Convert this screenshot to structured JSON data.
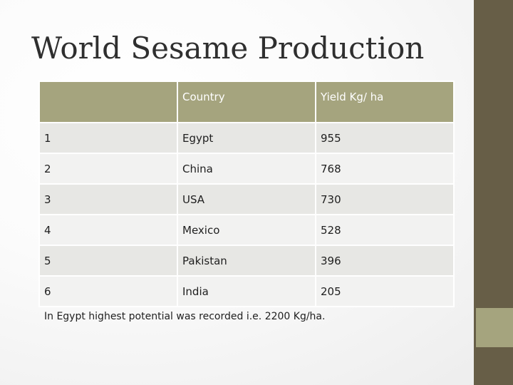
{
  "title": "World Sesame Production",
  "table": {
    "headers": [
      "",
      "Country",
      "Yield Kg/ ha"
    ],
    "rows": [
      [
        "1",
        "Egypt",
        "955"
      ],
      [
        "2",
        "China",
        "768"
      ],
      [
        "3",
        "USA",
        "730"
      ],
      [
        "4",
        "Mexico",
        "528"
      ],
      [
        "5",
        "Pakistan",
        "396"
      ],
      [
        "6",
        "India",
        "205"
      ]
    ]
  },
  "note": "In Egypt highest potential was recorded i.e. 2200 Kg/ha.",
  "colors": {
    "sidebar": "#675e47",
    "accent": "#a5a47e",
    "row_odd": "#e7e7e4",
    "row_even": "#f2f2f1"
  }
}
